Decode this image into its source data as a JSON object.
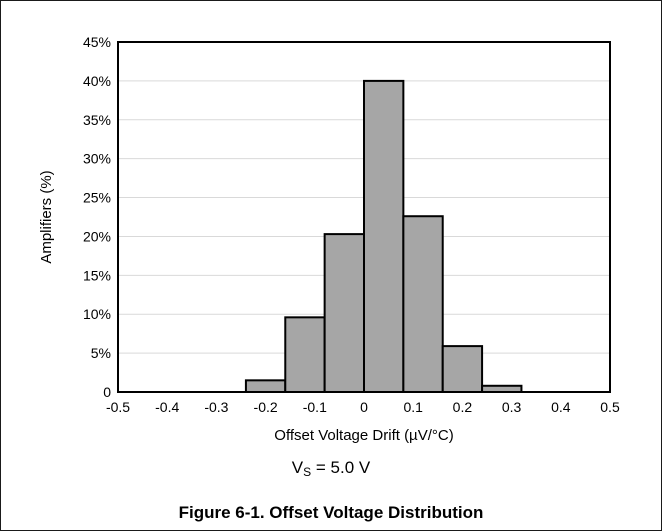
{
  "chart_data": {
    "type": "bar",
    "title": "",
    "xlabel": "Offset Voltage Drift (µV/°C)",
    "ylabel": "Amplifiers (%)",
    "xlim": [
      -0.5,
      0.5
    ],
    "ylim": [
      0,
      45
    ],
    "x_ticks": [
      "-0.5",
      "-0.4",
      "-0.3",
      "-0.2",
      "-0.1",
      "0",
      "0.1",
      "0.2",
      "0.3",
      "0.4",
      "0.5"
    ],
    "y_ticks": [
      "0",
      "5%",
      "10%",
      "15%",
      "20%",
      "25%",
      "30%",
      "35%",
      "40%",
      "45%"
    ],
    "grid": true,
    "bins": [
      {
        "x0": -0.24,
        "x1": -0.16,
        "value": 1.5
      },
      {
        "x0": -0.16,
        "x1": -0.08,
        "value": 9.6
      },
      {
        "x0": -0.08,
        "x1": 0.0,
        "value": 20.3
      },
      {
        "x0": 0.0,
        "x1": 0.08,
        "value": 40.0
      },
      {
        "x0": 0.08,
        "x1": 0.16,
        "value": 22.6
      },
      {
        "x0": 0.16,
        "x1": 0.24,
        "value": 5.9
      },
      {
        "x0": 0.24,
        "x1": 0.32,
        "value": 0.8
      }
    ],
    "bar_color": "#a6a6a6"
  },
  "condition": {
    "prefix": "V",
    "sub": "S",
    "suffix": " = 5.0 V"
  },
  "caption": "Figure 6-1. Offset Voltage Distribution"
}
